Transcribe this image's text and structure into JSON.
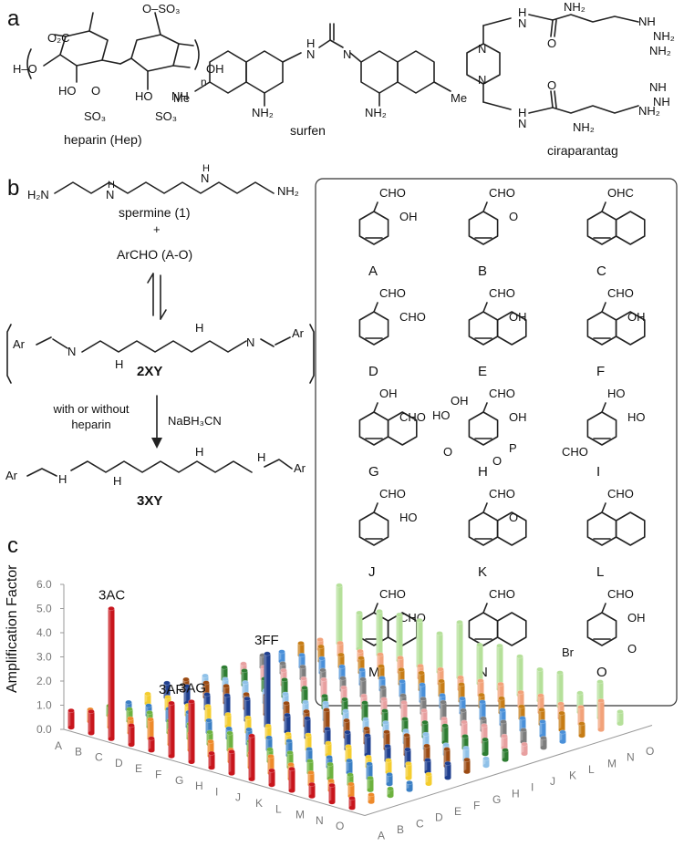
{
  "panels": {
    "a": {
      "letter": "a",
      "structures": [
        {
          "name": "heparin (Hep)"
        },
        {
          "name": "surfen"
        },
        {
          "name": "ciraparantag"
        }
      ],
      "atoms": {
        "co2": "O₂C",
        "oso3": "O–SO₃",
        "ho_left": "H–O",
        "oh_right": "OH",
        "n": "n",
        "ho1": "HO",
        "o_s": "O",
        "so3_1": "SO₃",
        "ho2": "HO",
        "nh_h": "NH",
        "so3_2": "SO₃",
        "hn_s": "H",
        "n_s": "N",
        "n_s2": "N",
        "me1": "Me",
        "me2": "Me",
        "nh2a": "NH₂",
        "nh2b": "NH₂",
        "hn_c1": "H",
        "n_c1": "N",
        "hn_c2": "H",
        "n_c2": "N",
        "nh2_c1": "NH₂",
        "nh_c1": "NH",
        "nh2_c2": "NH₂",
        "nh2_c3": "NH₂",
        "n_pip1": "N",
        "n_pip2": "N",
        "o_c1": "O",
        "o_c2": "O",
        "nh_c2": "NH",
        "nh2_c4": "NH₂",
        "nh_c3": "NH",
        "nh2_c5": "NH₂"
      }
    },
    "b": {
      "letter": "b",
      "spermine_label": "spermine (1)",
      "plus": "+",
      "archo_label": "ArCHO (A-O)",
      "intermediate_label": "2XY",
      "condition_left": "with or without heparin",
      "condition_right": "NaBH₃CN",
      "product_label": "3XY",
      "atoms": {
        "h2n": "H₂N",
        "nh2": "NH₂",
        "n1": "N",
        "h1": "H",
        "n2": "N",
        "h2": "H",
        "ar_l": "Ar",
        "ar_r": "Ar",
        "n_l": "N",
        "n_r": "N",
        "h3": "H",
        "h4": "H",
        "ar_l2": "Ar",
        "ar_r2": "Ar",
        "h5": "H",
        "h6": "H",
        "h7": "H",
        "h8": "H"
      },
      "aldehydes": [
        {
          "key": "A",
          "subs": [
            "CHO",
            "OH"
          ]
        },
        {
          "key": "B",
          "subs": [
            "CHO",
            "O"
          ]
        },
        {
          "key": "C",
          "subs": [
            "OHC"
          ]
        },
        {
          "key": "D",
          "subs": [
            "CHO",
            "CHO"
          ]
        },
        {
          "key": "E",
          "subs": [
            "CHO",
            "OH"
          ]
        },
        {
          "key": "F",
          "subs": [
            "CHO",
            "OH"
          ]
        },
        {
          "key": "G",
          "subs": [
            "OH",
            "CHO"
          ]
        },
        {
          "key": "H",
          "subs": [
            "CHO",
            "OH",
            "O",
            "P",
            "HO",
            "OH",
            "O"
          ]
        },
        {
          "key": "I",
          "subs": [
            "HO",
            "HO",
            "CHO"
          ]
        },
        {
          "key": "J",
          "subs": [
            "CHO",
            "HO"
          ]
        },
        {
          "key": "K",
          "subs": [
            "CHO",
            "O"
          ]
        },
        {
          "key": "L",
          "subs": [
            "CHO"
          ]
        },
        {
          "key": "M",
          "subs": [
            "CHO",
            "CHO"
          ]
        },
        {
          "key": "N",
          "subs": [
            "CHO"
          ]
        },
        {
          "key": "O",
          "subs": [
            "CHO",
            "OH",
            "Br",
            "O"
          ]
        }
      ]
    },
    "c": {
      "letter": "c"
    }
  },
  "chart_data": {
    "type": "bar",
    "ylabel": "Amplification Factor",
    "ylim": [
      0,
      6
    ],
    "yticks": [
      "0.0",
      "1.0",
      "2.0",
      "3.0",
      "4.0",
      "5.0",
      "6.0"
    ],
    "x_categories": [
      "A",
      "B",
      "C",
      "D",
      "E",
      "F",
      "G",
      "H",
      "I",
      "J",
      "K",
      "L",
      "M",
      "N",
      "O"
    ],
    "z_categories": [
      "A",
      "B",
      "C",
      "D",
      "E",
      "F",
      "G",
      "H",
      "I",
      "J",
      "K",
      "L",
      "M",
      "N",
      "O"
    ],
    "annotations": [
      {
        "label": "3AC",
        "value": 5.4
      },
      {
        "label": "3AF",
        "value": 2.2
      },
      {
        "label": "3AG",
        "value": 2.5
      },
      {
        "label": "3FF",
        "value": 3.0
      }
    ],
    "colors": [
      "#c8161d",
      "#ee8a2a",
      "#6db23f",
      "#3b7fc4",
      "#f4cd2e",
      "#1f3f8f",
      "#9b4a12",
      "#8fc1e8",
      "#2e7d32",
      "#e8a0a0",
      "#7d7d7d",
      "#4a90d9",
      "#c77d16",
      "#f2a27a",
      "#b5e09a"
    ],
    "series": [
      {
        "name": "A",
        "values": [
          0.7,
          0.9,
          5.4,
          0.8,
          0.5,
          2.2,
          2.5,
          0.6,
          0.9,
          1.8,
          0.6,
          0.9,
          0.5,
          0.7,
          0.4
        ]
      },
      {
        "name": "B",
        "values": [
          0.5,
          0.5,
          0.6,
          0.8,
          0.6,
          0.7,
          0.6,
          0.5,
          0.6,
          0.7,
          0.6,
          0.5,
          0.4,
          0.5,
          0.3
        ]
      },
      {
        "name": "C",
        "values": [
          0.4,
          0.5,
          0.6,
          0.5,
          0.6,
          0.5,
          0.7,
          0.6,
          0.5,
          0.6,
          0.5,
          0.6,
          0.4,
          0.5,
          0.3
        ]
      },
      {
        "name": "D",
        "values": [
          0.3,
          0.4,
          0.5,
          0.6,
          0.5,
          0.4,
          0.6,
          0.5,
          0.6,
          0.5,
          0.4,
          0.5,
          0.6,
          0.4,
          0.3
        ]
      },
      {
        "name": "E",
        "values": [
          0.4,
          0.5,
          0.4,
          0.6,
          0.5,
          0.6,
          0.5,
          0.4,
          0.6,
          0.5,
          0.6,
          0.4,
          0.5,
          0.6,
          0.4
        ]
      },
      {
        "name": "F",
        "values": [
          0.6,
          0.7,
          0.6,
          0.8,
          0.9,
          3.0,
          0.7,
          0.8,
          0.6,
          0.7,
          0.8,
          0.6,
          0.7,
          0.5,
          0.6
        ]
      },
      {
        "name": "G",
        "values": [
          0.5,
          0.6,
          0.7,
          0.6,
          0.8,
          0.7,
          0.6,
          0.9,
          0.7,
          0.6,
          0.7,
          0.8,
          0.6,
          0.7,
          0.5
        ]
      },
      {
        "name": "H",
        "values": [
          0.4,
          0.5,
          0.6,
          0.5,
          0.6,
          0.5,
          0.7,
          0.6,
          0.5,
          0.6,
          0.5,
          0.6,
          0.4,
          0.5,
          0.3
        ]
      },
      {
        "name": "I",
        "values": [
          0.5,
          0.6,
          0.5,
          0.7,
          0.6,
          0.5,
          0.6,
          0.7,
          0.6,
          0.5,
          0.6,
          0.7,
          0.5,
          0.6,
          0.4
        ]
      },
      {
        "name": "J",
        "values": [
          0.4,
          0.5,
          0.6,
          0.5,
          0.7,
          0.6,
          0.5,
          0.6,
          0.7,
          0.6,
          0.5,
          0.6,
          0.7,
          0.5,
          0.4
        ]
      },
      {
        "name": "K",
        "values": [
          0.5,
          0.4,
          0.5,
          0.6,
          0.5,
          0.7,
          0.6,
          0.5,
          0.6,
          0.7,
          0.6,
          0.5,
          0.6,
          0.5,
          0.4
        ]
      },
      {
        "name": "L",
        "values": [
          0.4,
          0.5,
          0.6,
          0.5,
          0.6,
          0.5,
          0.6,
          0.7,
          0.5,
          0.6,
          0.7,
          0.6,
          0.5,
          0.6,
          0.4
        ]
      },
      {
        "name": "M",
        "values": [
          0.5,
          0.6,
          0.5,
          0.6,
          0.5,
          0.6,
          0.7,
          0.6,
          0.7,
          0.5,
          0.6,
          0.5,
          0.6,
          0.7,
          0.5
        ]
      },
      {
        "name": "N",
        "values": [
          0.4,
          0.5,
          0.4,
          0.5,
          0.6,
          0.5,
          0.6,
          0.5,
          0.6,
          0.7,
          0.6,
          0.7,
          0.6,
          0.7,
          1.2
        ]
      },
      {
        "name": "O",
        "values": [
          2.4,
          1.5,
          1.8,
          1.9,
          1.9,
          1.6,
          2.3,
          1.6,
          1.8,
          1.6,
          1.3,
          1.4,
          0.8,
          1.5,
          0.5
        ]
      }
    ]
  }
}
